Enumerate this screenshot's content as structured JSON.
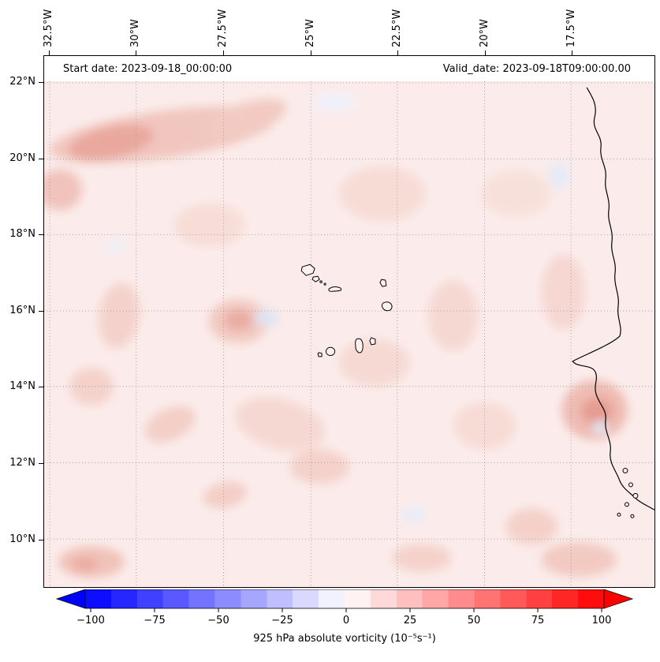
{
  "header": {
    "start_date": "Start date: 2023-09-18_00:00:00",
    "valid_date": "Valid_date: 2023-09-18T09:00:00.00"
  },
  "axes": {
    "lon_ticks": [
      "32.5°W",
      "30°W",
      "27.5°W",
      "25°W",
      "22.5°W",
      "20°W",
      "17.5°W"
    ],
    "lat_ticks": [
      "22°N",
      "20°N",
      "18°N",
      "16°N",
      "14°N",
      "12°N",
      "10°N"
    ]
  },
  "colorbar": {
    "label": "925 hPa absolute vorticity (10⁻⁵s⁻¹)",
    "tick_labels": [
      "−100",
      "−75",
      "−50",
      "−25",
      "0",
      "25",
      "50",
      "75",
      "100"
    ],
    "min_color": "#0000ff",
    "mid_color": "#ffffff",
    "max_color": "#ff0000",
    "band_colors": [
      "#0d0dff",
      "#2626ff",
      "#4040ff",
      "#5959ff",
      "#7373ff",
      "#8c8cff",
      "#a6a6ff",
      "#bfbfff",
      "#d9d9ff",
      "#f2f2ff",
      "#fff2f2",
      "#ffd9d9",
      "#ffbfbf",
      "#ffa6a6",
      "#ff8c8c",
      "#ff7373",
      "#ff5959",
      "#ff4040",
      "#ff2626",
      "#ff0d0d"
    ]
  },
  "chart_data": {
    "type": "heatmap",
    "title": "",
    "annotations": [
      "Start date: 2023-09-18_00:00:00",
      "Valid_date: 2023-09-18T09:00:00.00"
    ],
    "x_ticks": [
      "32.5°W",
      "30°W",
      "27.5°W",
      "25°W",
      "22.5°W",
      "20°W",
      "17.5°W"
    ],
    "y_ticks": [
      "22°N",
      "20°N",
      "18°N",
      "16°N",
      "14°N",
      "12°N",
      "10°N"
    ],
    "x_range_deg_west": [
      33.6,
      16.1
    ],
    "y_range_deg_north": [
      9.0,
      22.3
    ],
    "colorbar": {
      "label": "925 hPa absolute vorticity (10⁻⁵ s⁻¹)",
      "ticks": [
        -100,
        -75,
        -50,
        -25,
        0,
        25,
        50,
        75,
        100
      ],
      "range": [
        -100,
        100
      ],
      "colormap": "blue-white-red (bwr), discrete bands, arrow extensions on both ends",
      "extend": "both"
    },
    "grid": "dotted gray lat/lon gridlines",
    "geography": [
      "West African coastline (Mauritania, Senegal, Gambia, Guinea-Bissau)",
      "Cape Verde islands outlined near 16°N 24°W"
    ],
    "field_summary": "Mostly weak positive absolute vorticity (pale red shading, roughly 0 to +20 ×10⁻⁵ s⁻¹) over the whole domain; stronger pink band near 20–21°N in the west, red patch near 16°N 28°W, and enhanced values along the African coast near 13–14°N; a few small weak negative (pale blue) patches, e.g. near 16°N 27.5°W, 19.8°N 17.5°W and offshore 13.5°N 18.5°W."
  }
}
